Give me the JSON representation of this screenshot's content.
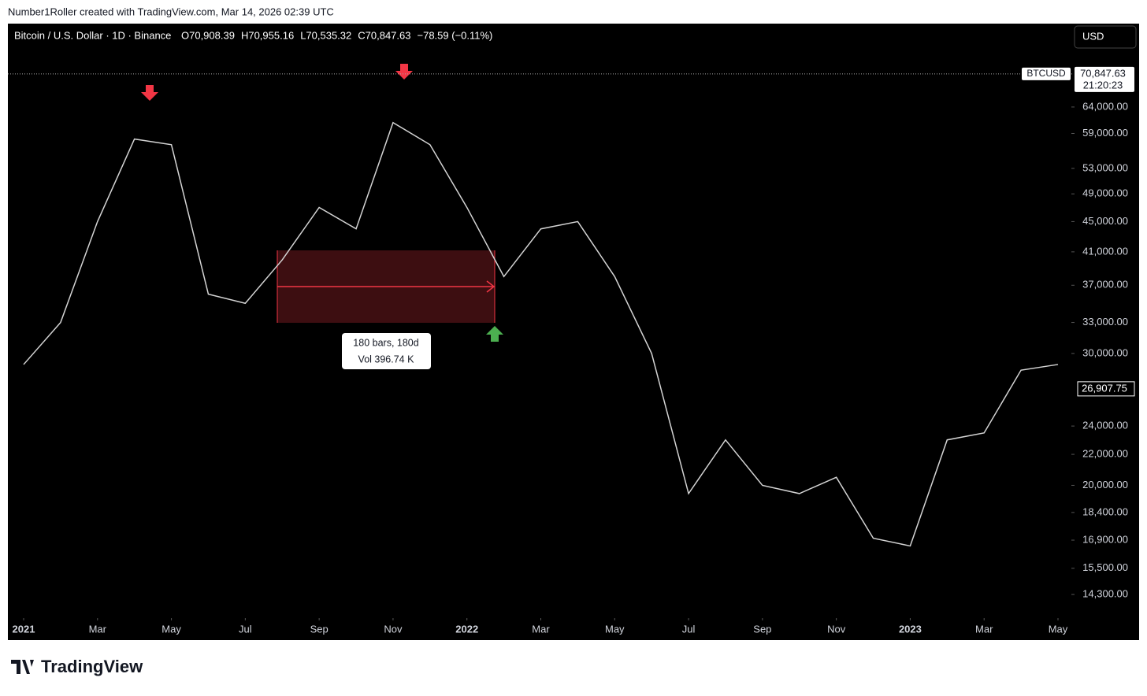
{
  "header": {
    "credit": "Number1Roller created with TradingView.com, Mar 14, 2026 02:39 UTC"
  },
  "legend": {
    "symbol": "Bitcoin / U.S. Dollar · 1D · Binance",
    "ohlc": [
      "O70,908.39",
      "H70,955.16",
      "L70,535.32",
      "C70,847.63",
      "−78.59 (−0.11%)"
    ]
  },
  "currency_button": "USD",
  "footer": {
    "logo": "TradingView"
  },
  "chart_data": {
    "type": "line",
    "log_scale": true,
    "grid": false,
    "x": [
      "2021-01",
      "2021-02",
      "2021-03",
      "2021-04",
      "2021-05",
      "2021-06",
      "2021-07",
      "2021-08",
      "2021-09",
      "2021-10",
      "2021-11",
      "2021-12",
      "2022-01",
      "2022-02",
      "2022-03",
      "2022-04",
      "2022-05",
      "2022-06",
      "2022-07",
      "2022-08",
      "2022-09",
      "2022-10",
      "2022-11",
      "2022-12",
      "2023-01",
      "2023-02",
      "2023-03",
      "2023-04",
      "2023-05"
    ],
    "series": [
      {
        "name": "BTCUSD",
        "color": "#d4d4d4",
        "values": [
          29000,
          33000,
          45000,
          58000,
          57000,
          36000,
          35000,
          40000,
          47000,
          44000,
          61000,
          57000,
          47000,
          38000,
          44000,
          45000,
          38000,
          30000,
          19500,
          23000,
          20000,
          19500,
          20500,
          17000,
          16600,
          23000,
          23500,
          28500,
          29000
        ]
      }
    ],
    "xlim": [
      "2021-01",
      "2023-05"
    ],
    "xticks": [
      {
        "value": "2021-01",
        "label": "2021"
      },
      {
        "value": "2021-03",
        "label": "Mar"
      },
      {
        "value": "2021-05",
        "label": "May"
      },
      {
        "value": "2021-07",
        "label": "Jul"
      },
      {
        "value": "2021-09",
        "label": "Sep"
      },
      {
        "value": "2021-11",
        "label": "Nov"
      },
      {
        "value": "2022-01",
        "label": "2022"
      },
      {
        "value": "2022-03",
        "label": "Mar"
      },
      {
        "value": "2022-05",
        "label": "May"
      },
      {
        "value": "2022-07",
        "label": "Jul"
      },
      {
        "value": "2022-09",
        "label": "Sep"
      },
      {
        "value": "2022-11",
        "label": "Nov"
      },
      {
        "value": "2023-01",
        "label": "2023"
      },
      {
        "value": "2023-03",
        "label": "Mar"
      },
      {
        "value": "2023-05",
        "label": "May"
      }
    ],
    "ylim": [
      13300,
      82700
    ],
    "yticks": [
      {
        "value": 64000,
        "label": "64,000.00"
      },
      {
        "value": 59000,
        "label": "59,000.00"
      },
      {
        "value": 53000,
        "label": "53,000.00"
      },
      {
        "value": 49000,
        "label": "49,000.00"
      },
      {
        "value": 45000,
        "label": "45,000.00"
      },
      {
        "value": 41000,
        "label": "41,000.00"
      },
      {
        "value": 37000,
        "label": "37,000.00"
      },
      {
        "value": 33000,
        "label": "33,000.00"
      },
      {
        "value": 30000,
        "label": "30,000.00"
      },
      {
        "value": 24000,
        "label": "24,000.00"
      },
      {
        "value": 22000,
        "label": "22,000.00"
      },
      {
        "value": 20000,
        "label": "20,000.00"
      },
      {
        "value": 18400,
        "label": "18,400.00"
      },
      {
        "value": 16900,
        "label": "16,900.00"
      },
      {
        "value": 15500,
        "label": "15,500.00"
      },
      {
        "value": 14300,
        "label": "14,300.00"
      }
    ],
    "current_price": {
      "value": 70847.63,
      "label": "70,847.63",
      "symbol": "BTCUSD",
      "countdown": "21:20:23"
    },
    "last_close": {
      "value": 26907.75,
      "label": "26,907.75"
    },
    "measure": {
      "bars": "180 bars, 180d",
      "volume": "Vol 396.74 K"
    }
  }
}
